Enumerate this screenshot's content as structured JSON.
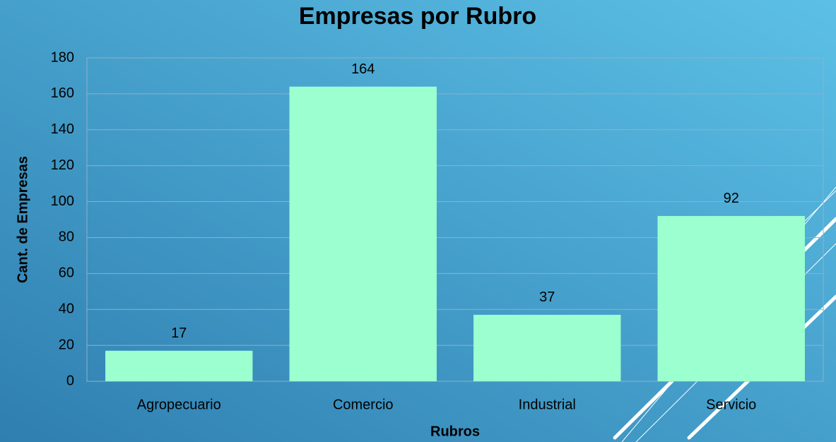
{
  "chart_data": {
    "type": "bar",
    "title": "Empresas por Rubro",
    "x_label": "Rubros",
    "y_label": "Cant. de Empresas",
    "categories": [
      "Agropecuario",
      "Comercio",
      "Industrial",
      "Servicio"
    ],
    "values": [
      17,
      164,
      37,
      92
    ],
    "color": "#9cffcf",
    "ylim": [
      0,
      180
    ],
    "yticks": [
      0,
      20,
      40,
      60,
      80,
      100,
      120,
      140,
      160,
      180
    ],
    "grid": true
  }
}
